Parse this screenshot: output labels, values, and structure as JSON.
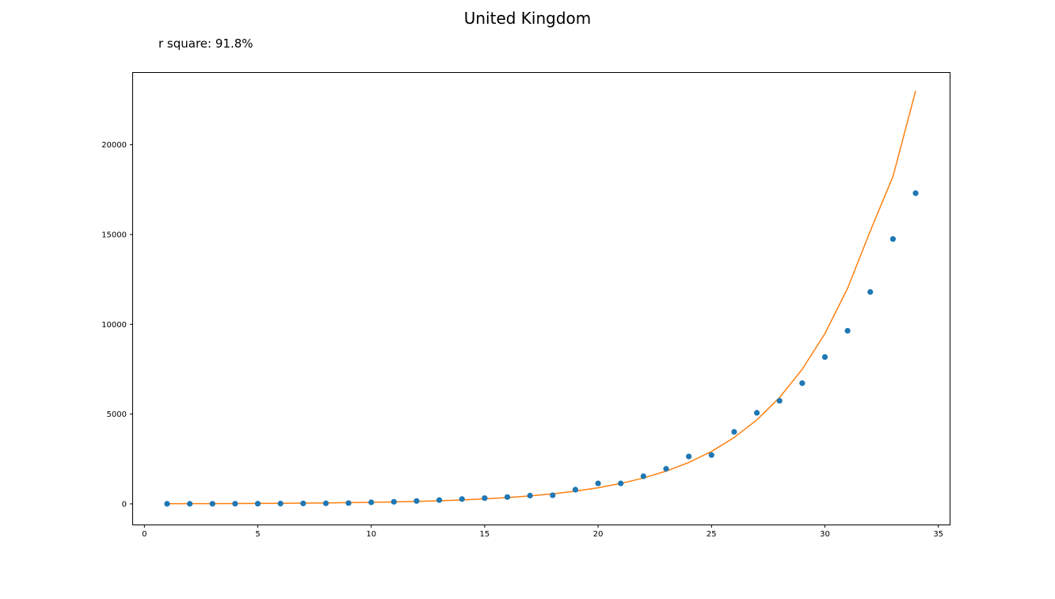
{
  "chart_data": {
    "type": "scatter",
    "title": "United Kingdom",
    "subtitle": "r square: 91.8%",
    "xlabel": "",
    "ylabel": "",
    "xlim": [
      -0.5,
      35.5
    ],
    "ylim": [
      -1150,
      24000
    ],
    "x_ticks": [
      0,
      5,
      10,
      15,
      20,
      25,
      30,
      35
    ],
    "y_ticks": [
      0,
      5000,
      10000,
      15000,
      20000
    ],
    "grid": false,
    "legend": "none",
    "series": [
      {
        "kind": "scatter",
        "color": "#1f77b4",
        "x": [
          1,
          2,
          3,
          4,
          5,
          6,
          7,
          8,
          9,
          10,
          11,
          12,
          13,
          14,
          15,
          16,
          17,
          18,
          19,
          20,
          21,
          22,
          23,
          24,
          25,
          26,
          27,
          28,
          29,
          30,
          31,
          32,
          33,
          34
        ],
        "y": [
          2,
          3,
          5,
          8,
          12,
          18,
          25,
          30,
          45,
          85,
          115,
          160,
          210,
          270,
          320,
          380,
          460,
          480,
          790,
          1140,
          1140,
          1540,
          1950,
          2640,
          2720,
          4010,
          5070,
          5740,
          6720,
          8180,
          9640,
          11800,
          14750,
          17300
        ]
      },
      {
        "kind": "line",
        "color": "#ff7f0e",
        "x": [
          1,
          2,
          3,
          4,
          5,
          6,
          7,
          8,
          9,
          10,
          11,
          12,
          13,
          14,
          15,
          16,
          17,
          18,
          19,
          20,
          21,
          22,
          23,
          24,
          25,
          26,
          27,
          28,
          29,
          30,
          31,
          32,
          33,
          34
        ],
        "y": [
          10,
          13,
          16,
          21,
          26,
          33,
          42,
          53,
          67,
          85,
          108,
          137,
          173,
          219,
          277,
          350,
          443,
          560,
          709,
          898,
          1137,
          1439,
          1822,
          2306,
          2919,
          3695,
          4677,
          5920,
          7493,
          9484,
          12004,
          15193,
          18230,
          23000
        ]
      }
    ]
  }
}
